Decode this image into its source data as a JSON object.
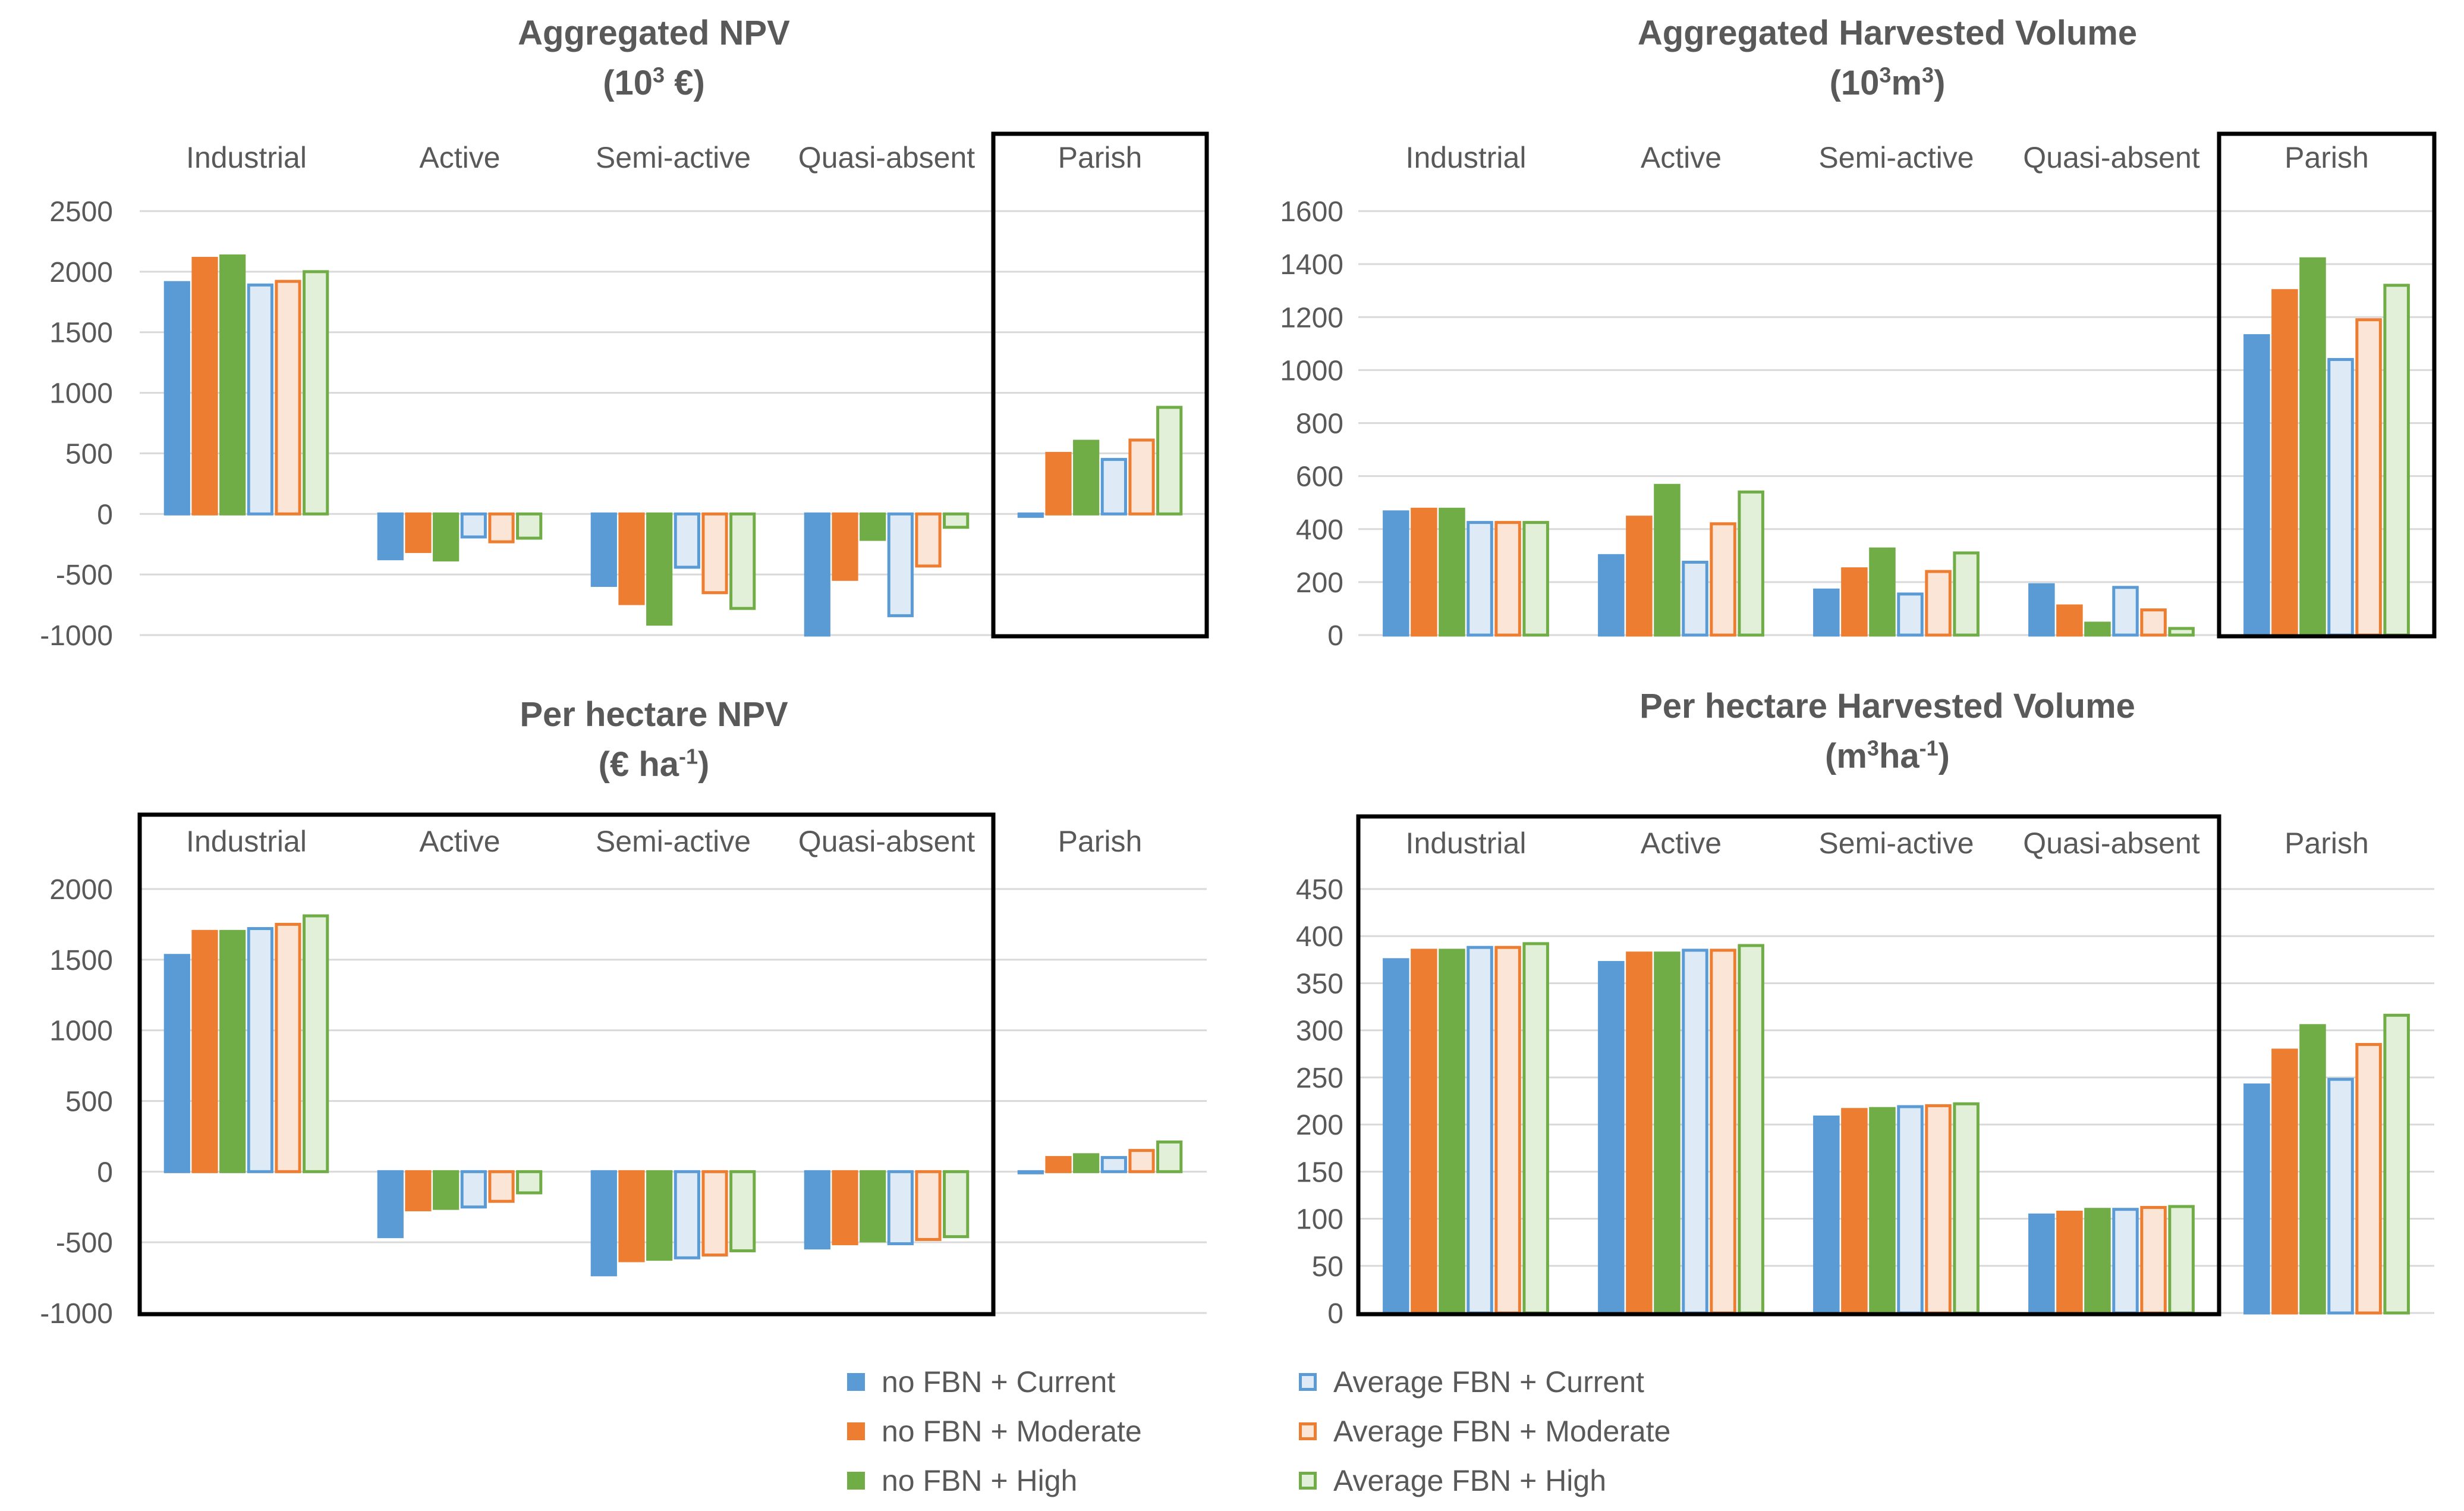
{
  "colors": {
    "blue": "#5b9bd5",
    "orange": "#ed7d31",
    "green": "#70ad47",
    "light_blue": "#deebf7",
    "light_orange": "#fbe5d6",
    "light_green": "#e2f0d9",
    "axis_text": "#595959",
    "grid": "#d9d9d9",
    "box": "#000000"
  },
  "legend": [
    {
      "name": "no FBN + Current",
      "fill": "#5b9bd5",
      "stroke": "#5b9bd5"
    },
    {
      "name": "no FBN + Moderate",
      "fill": "#ed7d31",
      "stroke": "#ed7d31"
    },
    {
      "name": "no FBN + High",
      "fill": "#70ad47",
      "stroke": "#70ad47"
    },
    {
      "name": "Average FBN + Current",
      "fill": "#deebf7",
      "stroke": "#5b9bd5"
    },
    {
      "name": "Average FBN + Moderate",
      "fill": "#fbe5d6",
      "stroke": "#ed7d31"
    },
    {
      "name": "Average FBN + High",
      "fill": "#e2f0d9",
      "stroke": "#70ad47"
    }
  ],
  "chart_data": [
    {
      "type": "bar",
      "title_line1": "Aggregated NPV",
      "title_unit": "(10",
      "title_sup": "3",
      "title_unit_end": " €)",
      "categories": [
        "Industrial",
        "Active",
        "Semi-active",
        "Quasi-absent",
        "Parish"
      ],
      "highlighted": [
        "Parish"
      ],
      "ylim": [
        -1000,
        2500
      ],
      "ystep": 500,
      "series": [
        {
          "name": "no FBN + Current",
          "values": [
            1910,
            -370,
            -590,
            -1000,
            -20
          ]
        },
        {
          "name": "no FBN + Moderate",
          "values": [
            2110,
            -310,
            -740,
            -540,
            500
          ]
        },
        {
          "name": "no FBN + High",
          "values": [
            2130,
            -380,
            -910,
            -210,
            600
          ]
        },
        {
          "name": "Average FBN + Current",
          "values": [
            1890,
            -190,
            -440,
            -840,
            450
          ]
        },
        {
          "name": "Average FBN + Moderate",
          "values": [
            1920,
            -230,
            -650,
            -430,
            610
          ]
        },
        {
          "name": "Average FBN + High",
          "values": [
            2000,
            -200,
            -780,
            -110,
            880
          ]
        }
      ]
    },
    {
      "type": "bar",
      "title_line1": "Aggregated Harvested Volume",
      "title_unit": "(10",
      "title_sup": "3",
      "title_unit_mid": "m",
      "title_sup2": "3",
      "title_unit_end": ")",
      "categories": [
        "Industrial",
        "Active",
        "Semi-active",
        "Quasi-absent",
        "Parish"
      ],
      "highlighted": [
        "Parish"
      ],
      "ylim": [
        0,
        1600
      ],
      "ystep": 200,
      "series": [
        {
          "name": "no FBN + Current",
          "values": [
            465,
            300,
            170,
            190,
            1130
          ]
        },
        {
          "name": "no FBN + Moderate",
          "values": [
            475,
            445,
            250,
            110,
            1300
          ]
        },
        {
          "name": "no FBN + High",
          "values": [
            475,
            565,
            325,
            45,
            1420
          ]
        },
        {
          "name": "Average FBN + Current",
          "values": [
            425,
            275,
            155,
            180,
            1040
          ]
        },
        {
          "name": "Average FBN + Moderate",
          "values": [
            425,
            420,
            240,
            95,
            1190
          ]
        },
        {
          "name": "Average FBN + High",
          "values": [
            425,
            540,
            310,
            25,
            1320
          ]
        }
      ]
    },
    {
      "type": "bar",
      "title_line1": "Per hectare NPV",
      "title_unit": "(€ ha",
      "title_sup": "-1",
      "title_unit_end": ")",
      "categories": [
        "Industrial",
        "Active",
        "Semi-active",
        "Quasi-absent",
        "Parish"
      ],
      "highlighted": [
        "Industrial",
        "Active",
        "Semi-active",
        "Quasi-absent"
      ],
      "ylim": [
        -1000,
        2000
      ],
      "ystep": 500,
      "series": [
        {
          "name": "no FBN + Current",
          "values": [
            1530,
            -460,
            -730,
            -540,
            0
          ]
        },
        {
          "name": "no FBN + Moderate",
          "values": [
            1700,
            -270,
            -630,
            -510,
            100
          ]
        },
        {
          "name": "no FBN + High",
          "values": [
            1700,
            -260,
            -620,
            -490,
            120
          ]
        },
        {
          "name": "Average FBN + Current",
          "values": [
            1720,
            -250,
            -610,
            -510,
            100
          ]
        },
        {
          "name": "Average FBN + Moderate",
          "values": [
            1750,
            -210,
            -590,
            -480,
            150
          ]
        },
        {
          "name": "Average FBN + High",
          "values": [
            1810,
            -150,
            -560,
            -460,
            210
          ]
        }
      ]
    },
    {
      "type": "bar",
      "title_line1": "Per hectare Harvested Volume",
      "title_unit": "(m",
      "title_sup": "3",
      "title_unit_mid": "ha",
      "title_sup2": "-1",
      "title_unit_end": ")",
      "categories": [
        "Industrial",
        "Active",
        "Semi-active",
        "Quasi-absent",
        "Parish"
      ],
      "highlighted": [
        "Industrial",
        "Active",
        "Semi-active",
        "Quasi-absent"
      ],
      "ylim": [
        0,
        450
      ],
      "ystep": 50,
      "series": [
        {
          "name": "no FBN + Current",
          "values": [
            375,
            372,
            208,
            104,
            242
          ]
        },
        {
          "name": "no FBN + Moderate",
          "values": [
            385,
            382,
            216,
            107,
            279
          ]
        },
        {
          "name": "no FBN + High",
          "values": [
            385,
            382,
            217,
            110,
            305
          ]
        },
        {
          "name": "Average FBN + Current",
          "values": [
            388,
            385,
            219,
            110,
            248
          ]
        },
        {
          "name": "Average FBN + Moderate",
          "values": [
            388,
            385,
            220,
            112,
            285
          ]
        },
        {
          "name": "Average FBN + High",
          "values": [
            392,
            390,
            222,
            113,
            316
          ]
        }
      ]
    }
  ]
}
